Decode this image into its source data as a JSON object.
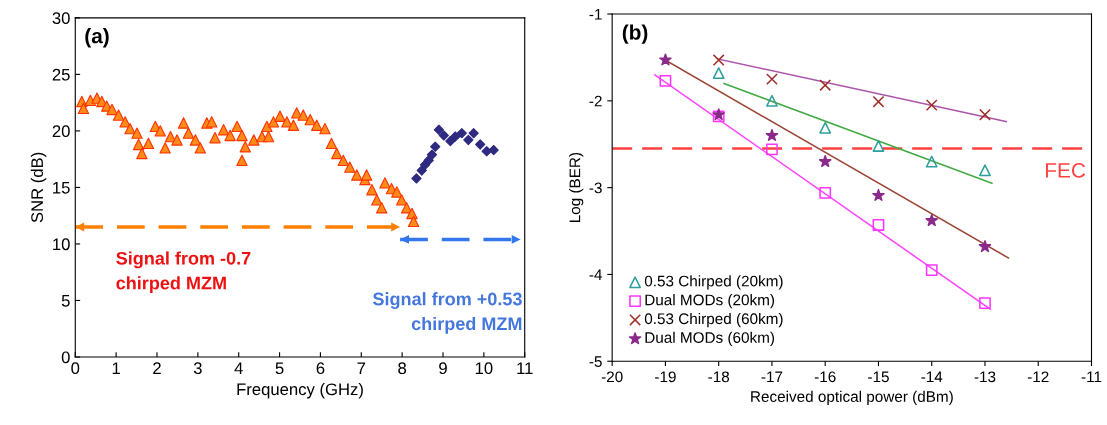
{
  "chart_data": [
    {
      "type": "scatter",
      "xlabel": "Frequency (GHz)",
      "ylabel": "SNR (dB)",
      "xlim": [
        0,
        11
      ],
      "ylim": [
        0,
        30
      ],
      "xticks": [
        0,
        1,
        2,
        3,
        4,
        5,
        6,
        7,
        8,
        9,
        10,
        11
      ],
      "yticks": [
        0,
        5,
        10,
        15,
        20,
        25,
        30
      ],
      "grid": false,
      "legend": false,
      "annotations": [
        "(a)",
        "Signal from -0.7\nchirped MZM",
        "Signal from +0.53\nchirped MZM"
      ],
      "series": [
        {
          "type": "scatter",
          "marker": "triangle",
          "color": "#ff8c1a",
          "x": [
            0.16,
            0.2,
            0.37,
            0.53,
            0.65,
            0.77,
            0.9,
            1.06,
            1.22,
            1.34,
            1.51,
            1.55,
            1.63,
            1.79,
            1.96,
            2.08,
            2.2,
            2.33,
            2.49,
            2.65,
            2.77,
            2.94,
            3.06,
            3.22,
            3.34,
            3.42,
            3.63,
            3.79,
            3.96,
            4.08,
            4.08,
            4.16,
            4.37,
            4.57,
            4.73,
            4.69,
            4.85,
            5.01,
            5.18,
            5.34,
            5.42,
            5.58,
            5.75,
            5.91,
            6.11,
            6.27,
            6.4,
            6.56,
            6.72,
            6.89,
            7.09,
            7.13,
            7.26,
            7.38,
            7.5,
            7.58,
            7.74,
            7.87,
            7.99,
            8.11,
            8.24,
            8.28
          ],
          "values": [
            22.6,
            22.0,
            22.7,
            22.9,
            22.6,
            22.2,
            21.9,
            21.4,
            20.8,
            20.2,
            19.8,
            18.8,
            18.0,
            18.9,
            20.4,
            20.0,
            18.5,
            19.5,
            19.2,
            20.7,
            19.8,
            19.2,
            18.5,
            20.7,
            20.8,
            19.4,
            20.1,
            19.6,
            20.4,
            19.6,
            17.4,
            18.6,
            19.2,
            19.5,
            19.5,
            20.4,
            20.8,
            21.3,
            20.8,
            20.5,
            21.6,
            21.4,
            21.0,
            20.5,
            20.2,
            18.9,
            18.0,
            17.4,
            16.8,
            16.1,
            15.7,
            16.1,
            14.8,
            13.9,
            13.2,
            15.4,
            14.9,
            14.6,
            13.9,
            13.2,
            12.7,
            12.0
          ]
        },
        {
          "type": "scatter",
          "marker": "diamond",
          "color": "#2e2a80",
          "x": [
            8.35,
            8.48,
            8.56,
            8.65,
            8.73,
            8.81,
            8.9,
            9.02,
            9.18,
            9.3,
            9.46,
            9.62,
            9.75,
            9.91,
            10.07,
            10.24
          ],
          "values": [
            15.8,
            16.5,
            17.0,
            17.4,
            17.9,
            18.6,
            20.1,
            19.6,
            19.1,
            19.5,
            19.8,
            19.2,
            19.8,
            18.8,
            18.2,
            18.3
          ]
        },
        {
          "type": "line",
          "marker": "none",
          "line_style": "dashed",
          "color": "#ff8000",
          "x": [
            0,
            7.95
          ],
          "values": [
            11.5,
            11.5
          ]
        },
        {
          "type": "line",
          "marker": "none",
          "line_style": "dashed",
          "color": "#3377ee",
          "x": [
            7.95,
            10.9
          ],
          "values": [
            10.4,
            10.4
          ]
        }
      ]
    },
    {
      "type": "scatter",
      "xlabel": "Received optical power (dBm)",
      "ylabel": "Log (BER)",
      "xlim": [
        -20,
        -11
      ],
      "ylim": [
        -5,
        -1
      ],
      "xticks": [
        -20,
        -19,
        -18,
        -17,
        -16,
        -15,
        -14,
        -13,
        -12,
        -11
      ],
      "yticks": [
        -5,
        -4,
        -3,
        -2,
        -1
      ],
      "grid": false,
      "legend": "bottom left",
      "annotations": [
        "(b)"
      ],
      "ref_lines": [
        {
          "axis": "y",
          "value": -2.55,
          "label": "FEC",
          "color": "#ff4040",
          "line_style": "dashed"
        }
      ],
      "series": [
        {
          "name": "0.53 Chirped (20km)",
          "type": "scatter",
          "marker": "triangle",
          "color": "#2e9e9e",
          "x": [
            -18,
            -17,
            -16,
            -15,
            -14,
            -13
          ],
          "values": [
            -1.68,
            -2.0,
            -2.31,
            -2.52,
            -2.7,
            -2.8
          ]
        },
        {
          "name": "Dual MODs (20km)",
          "type": "scatter",
          "marker": "square",
          "color": "#ff33ff",
          "x": [
            -19,
            -18,
            -17,
            -16,
            -15,
            -14,
            -13
          ],
          "values": [
            -1.77,
            -2.18,
            -2.56,
            -3.06,
            -3.43,
            -3.95,
            -4.33
          ]
        },
        {
          "name": "0.53 Chirped (60km)",
          "type": "scatter",
          "marker": "cross",
          "color": "#a0302a",
          "x": [
            -18,
            -17,
            -16,
            -15,
            -14,
            -13
          ],
          "values": [
            -1.53,
            -1.75,
            -1.82,
            -2.01,
            -2.05,
            -2.16
          ]
        },
        {
          "name": "Dual MODs (60km)",
          "type": "scatter",
          "marker": "star",
          "color": "#8b2a8b",
          "x": [
            -19,
            -18,
            -17,
            -16,
            -15,
            -14,
            -13
          ],
          "values": [
            -1.53,
            -2.16,
            -2.4,
            -2.7,
            -3.09,
            -3.38,
            -3.68
          ]
        },
        {
          "type": "line",
          "marker": "none",
          "line_style": "solid",
          "color": "#44aa44",
          "x": [
            -17.9,
            -12.87
          ],
          "values": [
            -1.8,
            -2.95
          ]
        },
        {
          "type": "line",
          "marker": "none",
          "line_style": "solid",
          "color": "#ff44ff",
          "x": [
            -19.2,
            -12.9
          ],
          "values": [
            -1.7,
            -4.4
          ]
        },
        {
          "type": "line",
          "marker": "none",
          "line_style": "solid",
          "color": "#aa55aa",
          "x": [
            -18.0,
            -12.6
          ],
          "values": [
            -1.52,
            -2.24
          ]
        },
        {
          "type": "line",
          "marker": "none",
          "line_style": "solid",
          "color": "#994433",
          "x": [
            -18.95,
            -12.56
          ],
          "values": [
            -1.55,
            -3.81
          ]
        }
      ]
    }
  ]
}
